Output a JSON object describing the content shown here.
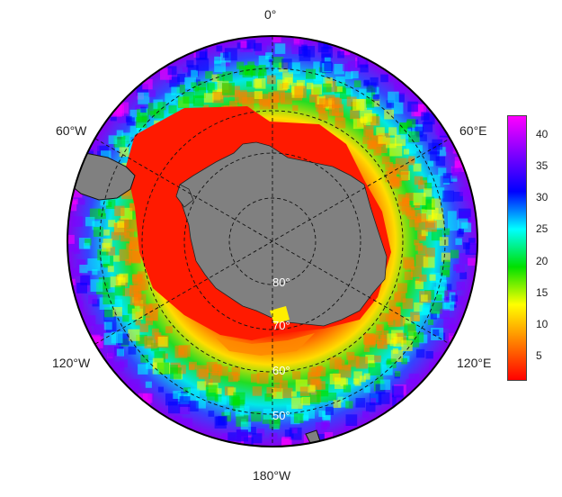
{
  "map": {
    "projection": "south-polar-stereographic",
    "colormap": [
      "#ff0000",
      "#ff7f00",
      "#ffff00",
      "#00e000",
      "#00ffff",
      "#0000ff",
      "#7f00ff",
      "#ff00ff"
    ],
    "land_color": "#808080",
    "longitude_labels": [
      "0°",
      "60°E",
      "120°E",
      "180°W",
      "120°W",
      "60°W"
    ],
    "latitude_labels": [
      "80°",
      "70°",
      "60°",
      "50°"
    ]
  },
  "colorbar": {
    "ticks": [
      "40",
      "35",
      "30",
      "25",
      "20",
      "15",
      "10",
      "5"
    ],
    "tick_values": [
      40,
      35,
      30,
      25,
      20,
      15,
      10,
      5
    ],
    "min": 1,
    "max": 43
  }
}
